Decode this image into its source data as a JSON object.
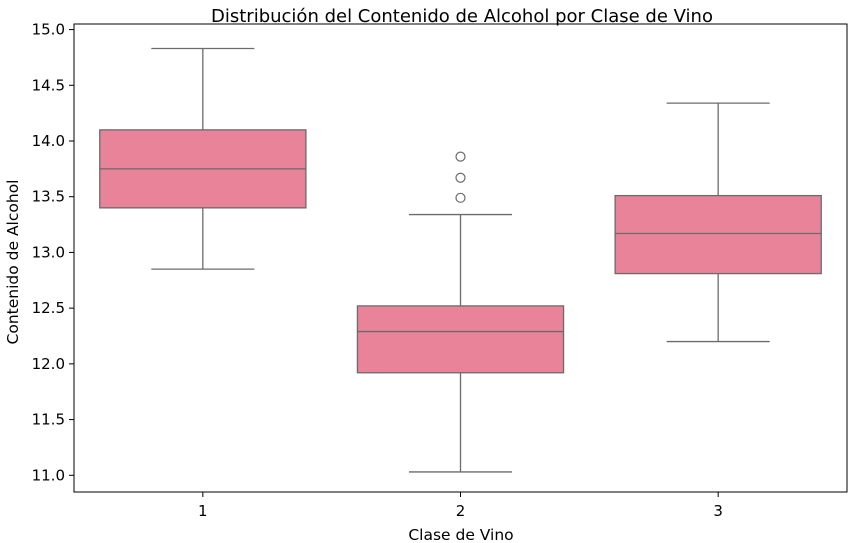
{
  "chart_data": {
    "type": "box",
    "title": "Distribución del Contenido de Alcohol por Clase de Vino",
    "xlabel": "Clase de Vino",
    "ylabel": "Contenido de Alcohol",
    "categories": [
      "1",
      "2",
      "3"
    ],
    "ylim": [
      10.85,
      15.05
    ],
    "yticks": [
      "11.0",
      "11.5",
      "12.0",
      "12.5",
      "13.0",
      "13.5",
      "14.0",
      "14.5",
      "15.0"
    ],
    "box_color": "#e8839a",
    "line_color": "#6b6b6b",
    "grid": false,
    "boxes": [
      {
        "category": "1",
        "whisker_low": 12.85,
        "q1": 13.4,
        "median": 13.75,
        "q3": 14.1,
        "whisker_high": 14.83,
        "outliers": []
      },
      {
        "category": "2",
        "whisker_low": 11.03,
        "q1": 11.92,
        "median": 12.29,
        "q3": 12.52,
        "whisker_high": 13.34,
        "outliers": [
          13.49,
          13.67,
          13.86
        ]
      },
      {
        "category": "3",
        "whisker_low": 12.2,
        "q1": 12.81,
        "median": 13.17,
        "q3": 13.51,
        "whisker_high": 14.34,
        "outliers": []
      }
    ]
  }
}
